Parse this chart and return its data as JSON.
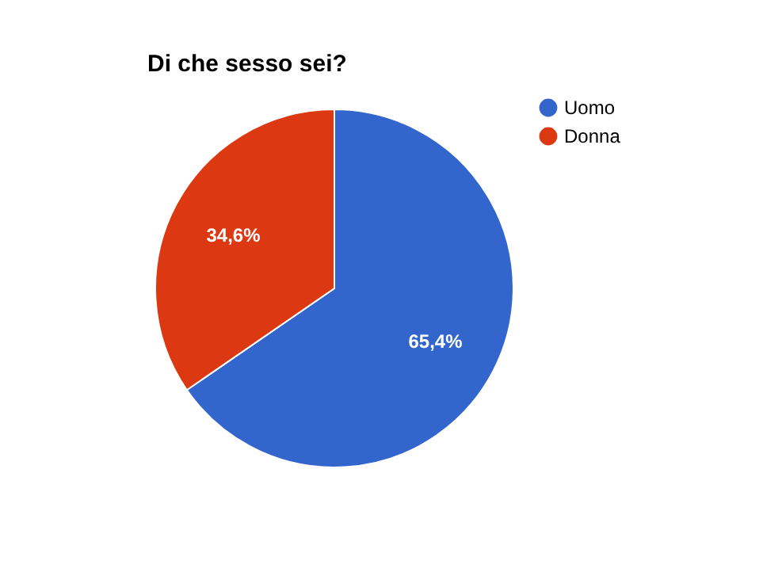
{
  "chart_data": {
    "type": "pie",
    "title": "Di che sesso sei?",
    "categories": [
      "Uomo",
      "Donna"
    ],
    "values": [
      65.4,
      34.6
    ],
    "colors": [
      "#3366cc",
      "#dc3912"
    ],
    "value_labels": [
      "65,4%",
      "34,6%"
    ],
    "legend": "top right"
  }
}
